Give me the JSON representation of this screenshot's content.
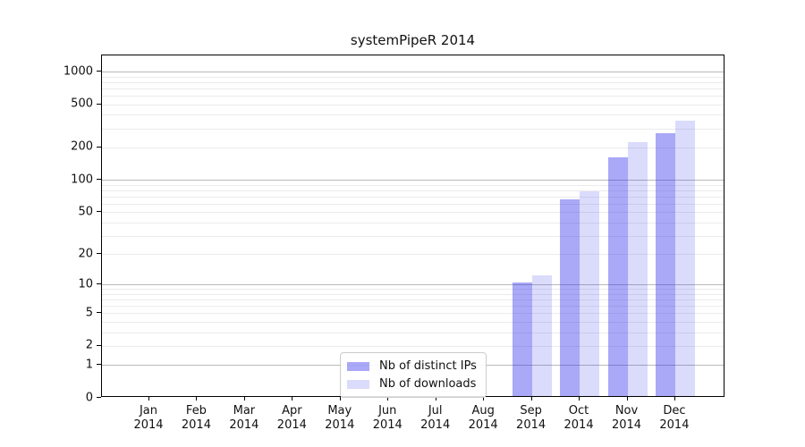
{
  "chart_data": {
    "type": "bar",
    "title": "systemPipeR 2014",
    "categories": [
      "Jan",
      "Feb",
      "Mar",
      "Apr",
      "May",
      "Jun",
      "Jul",
      "Aug",
      "Sep",
      "Oct",
      "Nov",
      "Dec"
    ],
    "year": "2014",
    "series": [
      {
        "name": "Nb of distinct IPs",
        "color": "rgba(40,40,235,0.40)",
        "values": [
          0,
          0,
          0,
          0,
          0,
          0,
          0,
          0,
          10,
          63,
          157,
          258
        ]
      },
      {
        "name": "Nb of downloads",
        "color": "rgba(40,40,235,0.17)",
        "values": [
          0,
          0,
          0,
          0,
          0,
          0,
          0,
          0,
          12,
          76,
          216,
          340
        ]
      }
    ],
    "y_ticks": [
      0,
      1,
      2,
      5,
      10,
      20,
      50,
      100,
      200,
      500,
      1000
    ],
    "y_major_gridlines": [
      1,
      10,
      100,
      1000
    ],
    "y_scale": "log1p",
    "ylim": [
      0,
      1407
    ],
    "xlabel": "",
    "ylabel": "",
    "grid": "horizontal major+minor",
    "legend_position": "bottom-center-left inside plot",
    "colors": {
      "bar_distinct_ips": "#a8a8f7",
      "bar_downloads": "#dadafb",
      "major_grid": "#b9b9b9",
      "minor_grid": "#ebebeb",
      "axis": "#000000",
      "text": "#111111"
    }
  }
}
